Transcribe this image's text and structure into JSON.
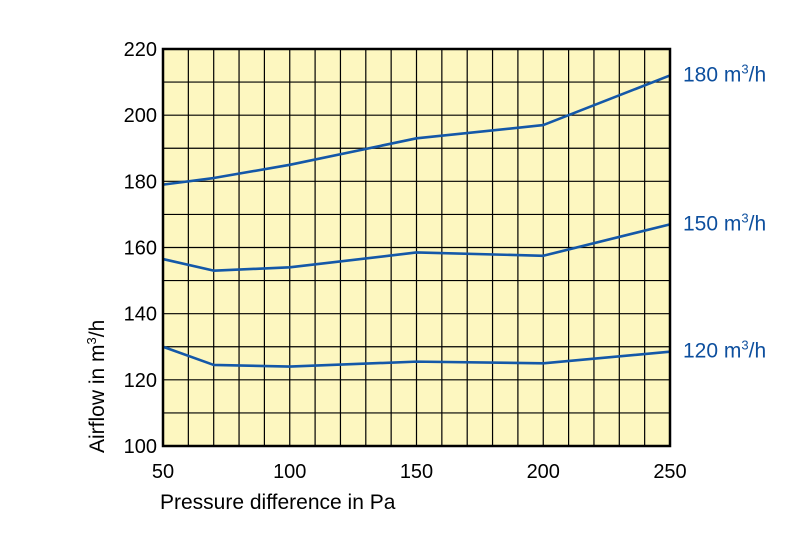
{
  "chart_data": {
    "type": "line",
    "title": "",
    "xlabel": "Pressure difference in Pa",
    "ylabel_parts": [
      "Airflow in m",
      "3",
      "/h"
    ],
    "xlim": [
      50,
      250
    ],
    "ylim": [
      100,
      220
    ],
    "x_ticks": [
      50,
      100,
      150,
      200,
      250
    ],
    "y_ticks": [
      100,
      120,
      140,
      160,
      180,
      200,
      220
    ],
    "grid": true,
    "plot_background": "#fdf7c0",
    "line_color": "#1458a8",
    "series": [
      {
        "name": "180 m³/h",
        "label_parts": [
          "180 m",
          "3",
          "/h"
        ],
        "x": [
          50,
          70,
          100,
          150,
          200,
          250
        ],
        "y": [
          179,
          181,
          185,
          193,
          197,
          212
        ]
      },
      {
        "name": "150 m³/h",
        "label_parts": [
          "150 m",
          "3",
          "/h"
        ],
        "x": [
          50,
          70,
          100,
          150,
          200,
          250
        ],
        "y": [
          156.5,
          153,
          154,
          158.5,
          157.5,
          167
        ]
      },
      {
        "name": "120 m³/h",
        "label_parts": [
          "120 m",
          "3",
          "/h"
        ],
        "x": [
          50,
          70,
          100,
          150,
          200,
          250
        ],
        "y": [
          130,
          124.5,
          124,
          125.5,
          125,
          128.5
        ]
      }
    ]
  }
}
